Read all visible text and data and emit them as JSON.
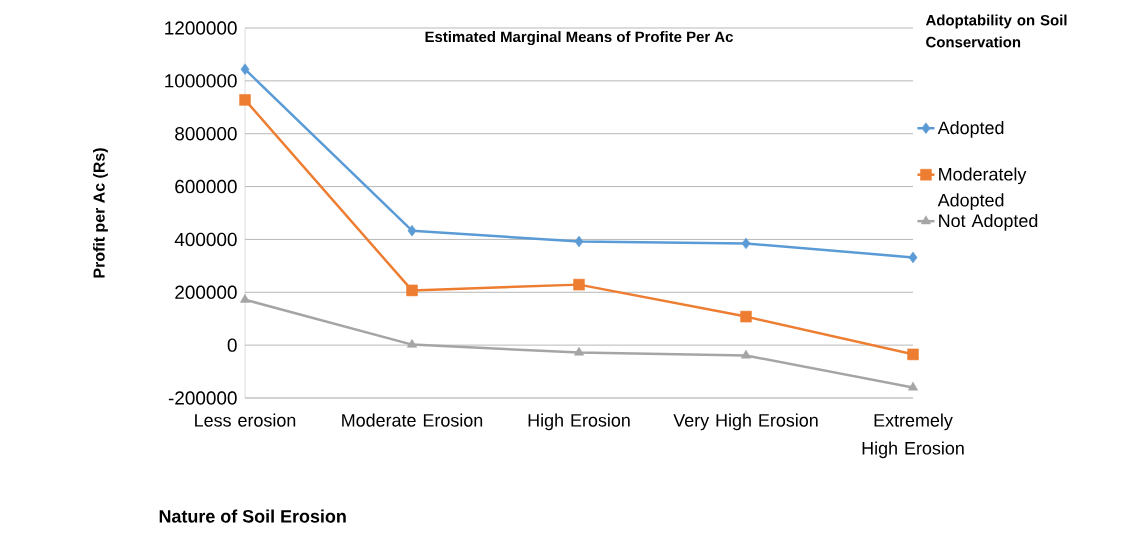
{
  "chart_data": {
    "type": "line",
    "title": "Estimated Marginal Means of Profite Per Ac",
    "xlabel": "Nature of Soil Erosion",
    "ylabel": "Profit per Ac (Rs)",
    "legend_title": "Adoptability on Soil Conservation",
    "categories": [
      "Less erosion",
      "Moderate Erosion",
      "High Erosion",
      "Very High Erosion",
      "Extremely High Erosion"
    ],
    "series": [
      {
        "name": "Adopted",
        "color": "#5b9bd5",
        "marker": "diamond",
        "values": [
          1044000,
          433000,
          392000,
          385000,
          332000
        ]
      },
      {
        "name": "Moderately Adopted",
        "color": "#ed7d31",
        "marker": "square",
        "values": [
          928000,
          207000,
          229000,
          108000,
          -35000
        ]
      },
      {
        "name": "Not Adopted",
        "color": "#a5a5a5",
        "marker": "triangle",
        "values": [
          172000,
          2000,
          -28000,
          -39000,
          -160000
        ]
      }
    ],
    "ylim": [
      -200000,
      1200000
    ],
    "yticks": [
      -200000,
      0,
      200000,
      400000,
      600000,
      800000,
      1000000,
      1200000
    ],
    "grid": "y",
    "legend": "right",
    "line_style": "solid"
  }
}
